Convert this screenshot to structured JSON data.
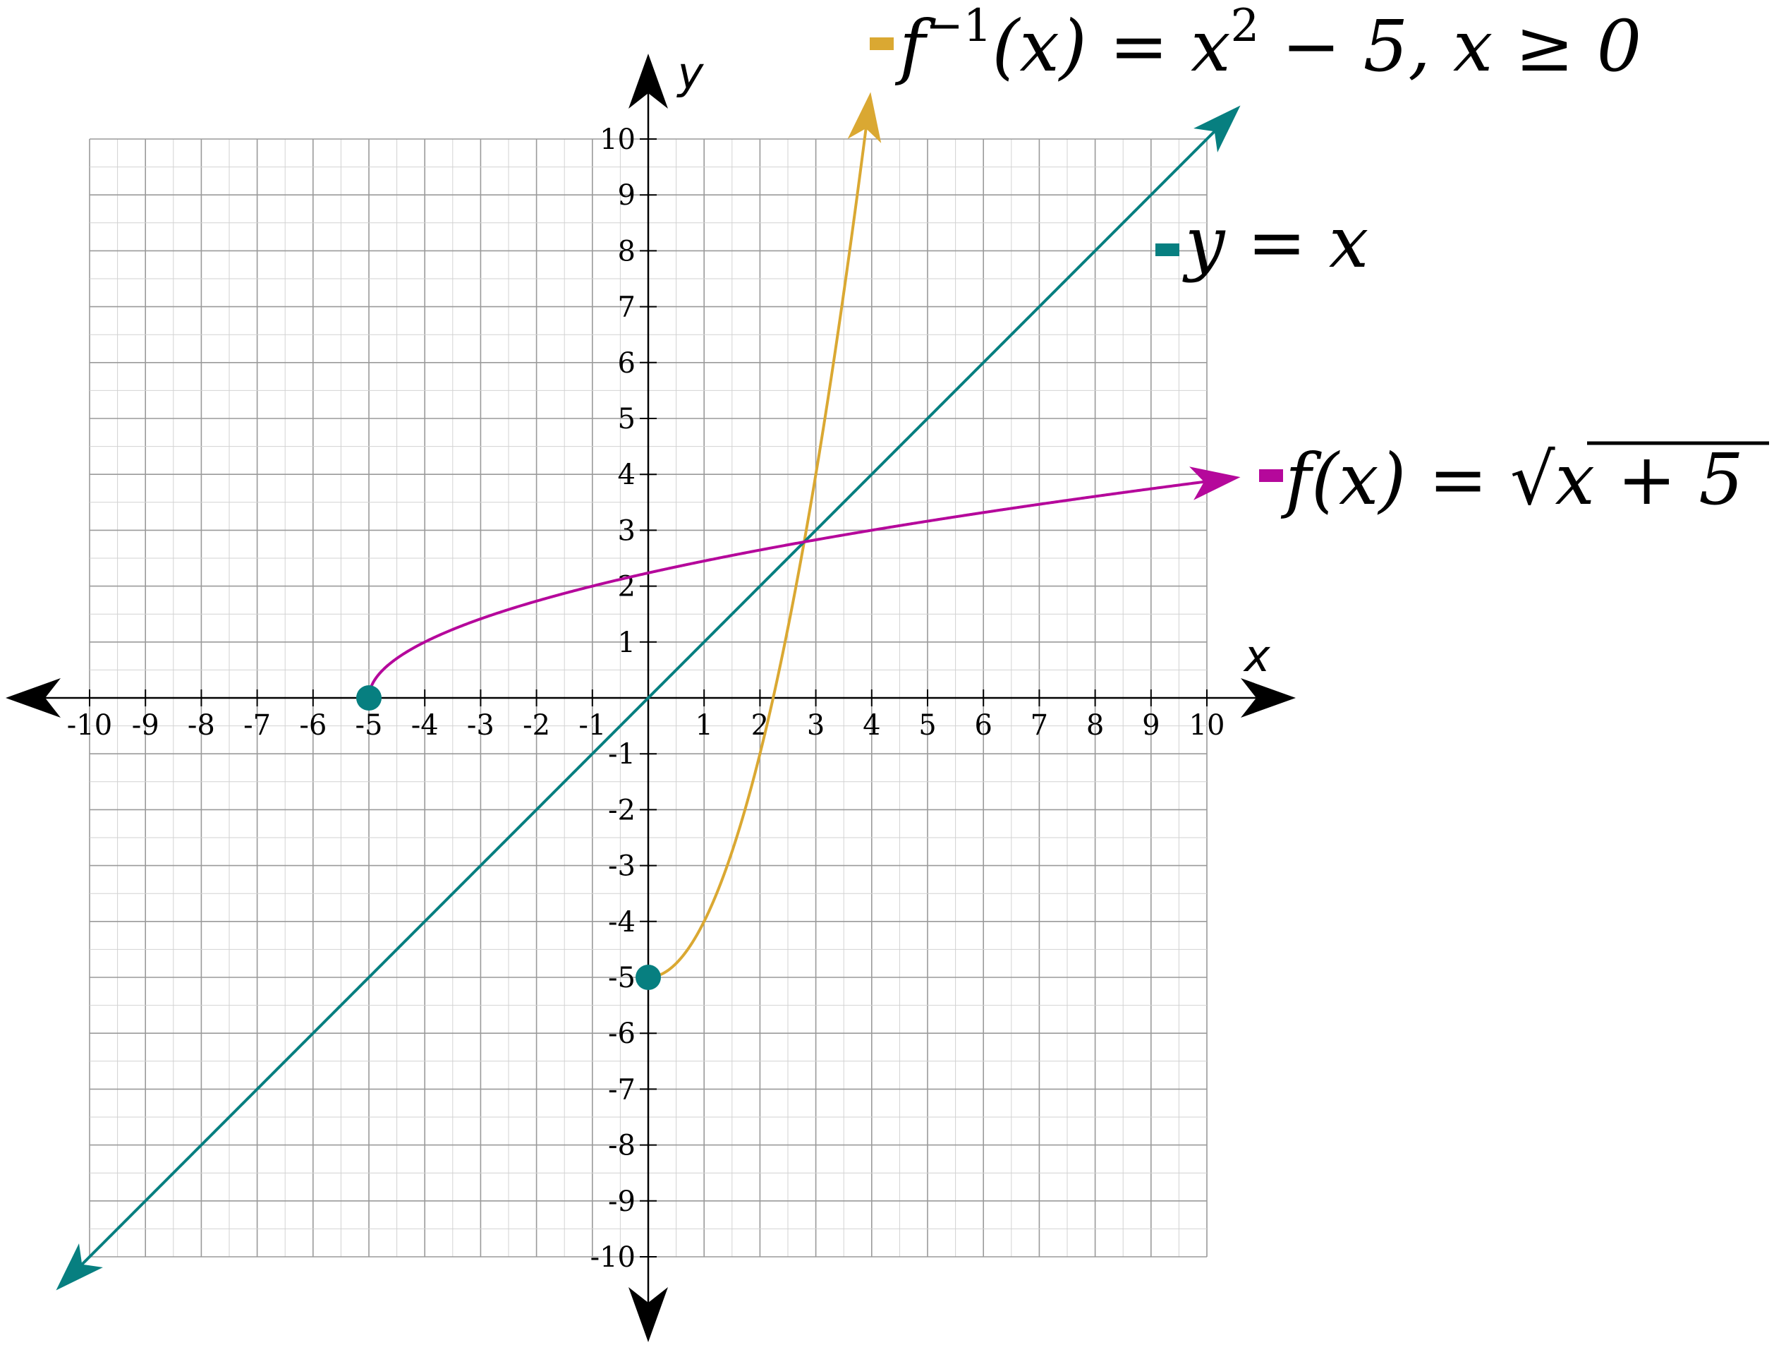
{
  "chart_data": {
    "type": "line",
    "xlabel": "x",
    "ylabel": "y",
    "xlim": [
      -10,
      10
    ],
    "ylim": [
      -10,
      10
    ],
    "x_ticks": [
      -10,
      -9,
      -8,
      -7,
      -6,
      -5,
      -4,
      -3,
      -2,
      -1,
      1,
      2,
      3,
      4,
      5,
      6,
      7,
      8,
      9,
      10
    ],
    "y_ticks": [
      -10,
      -9,
      -8,
      -7,
      -6,
      -5,
      -4,
      -3,
      -2,
      -1,
      1,
      2,
      3,
      4,
      5,
      6,
      7,
      8,
      9,
      10
    ],
    "grid": true,
    "series": [
      {
        "name": "f^{-1}(x) = x^2 - 5, x ≥ 0",
        "color": "#DAA832",
        "function": "x^2 - 5",
        "domain": [
          0,
          3.98
        ],
        "start_point": [
          0,
          -5
        ],
        "end_arrow": true
      },
      {
        "name": "y = x",
        "color": "#077F80",
        "function": "x",
        "domain": [
          -10.6,
          10.6
        ],
        "start_arrow": true,
        "end_arrow": true
      },
      {
        "name": "f(x) = √(x + 5)",
        "color": "#B5089B",
        "function": "sqrt(x + 5)",
        "domain": [
          -5,
          10.6
        ],
        "start_point": [
          -5,
          0
        ],
        "end_arrow": true
      }
    ],
    "points": [
      {
        "x": -5,
        "y": 0,
        "color": "#077F80"
      },
      {
        "x": 0,
        "y": -5,
        "color": "#077F80"
      }
    ],
    "legend": [
      {
        "series": 0,
        "parts": [
          "f",
          "−1",
          "(x) = x",
          "2",
          " − 5, x ≥ 0"
        ]
      },
      {
        "series": 1,
        "parts": [
          "y = x"
        ]
      },
      {
        "series": 2,
        "parts": [
          "f(x) = ",
          "√",
          "x + 5"
        ]
      }
    ]
  }
}
